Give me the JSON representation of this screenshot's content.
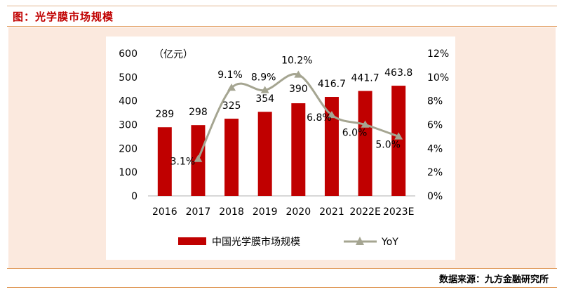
{
  "header": {
    "caption": "图：光学膜市场规模"
  },
  "footer": {
    "source": "数据来源：九方金融研究所"
  },
  "colors": {
    "bar": "#c00000",
    "line": "#a5a591",
    "caption": "#c00000",
    "panel": "#fbe9de"
  },
  "chart_data": {
    "type": "bar",
    "categories": [
      "2016",
      "2017",
      "2018",
      "2019",
      "2020",
      "2021",
      "2022E",
      "2023E"
    ],
    "unit_label": "（亿元）",
    "ylim": [
      0,
      600
    ],
    "yticks": [
      0,
      100,
      200,
      300,
      400,
      500,
      600
    ],
    "y2lim": [
      0,
      0.12
    ],
    "y2ticks": [
      "0%",
      "2%",
      "4%",
      "6%",
      "8%",
      "10%",
      "12%"
    ],
    "series": [
      {
        "name": "中国光学膜市场规模",
        "type": "bar",
        "axis": "left",
        "values": [
          289,
          298,
          325,
          354,
          390,
          416.7,
          441.7,
          463.8
        ],
        "labels": [
          "289",
          "298",
          "325",
          "354",
          "390",
          "416.7",
          "441.7",
          "463.8"
        ]
      },
      {
        "name": "YoY",
        "type": "line",
        "axis": "right",
        "x": [
          "2017",
          "2018",
          "2019",
          "2020",
          "2021",
          "2022E",
          "2023E"
        ],
        "values": [
          0.031,
          0.091,
          0.089,
          0.102,
          0.068,
          0.06,
          0.05
        ],
        "labels": [
          "3.1%",
          "9.1%",
          "8.9%",
          "10.2%",
          "6.8%",
          "6.0%",
          "5.0%"
        ]
      }
    ],
    "legend": "bottom"
  }
}
